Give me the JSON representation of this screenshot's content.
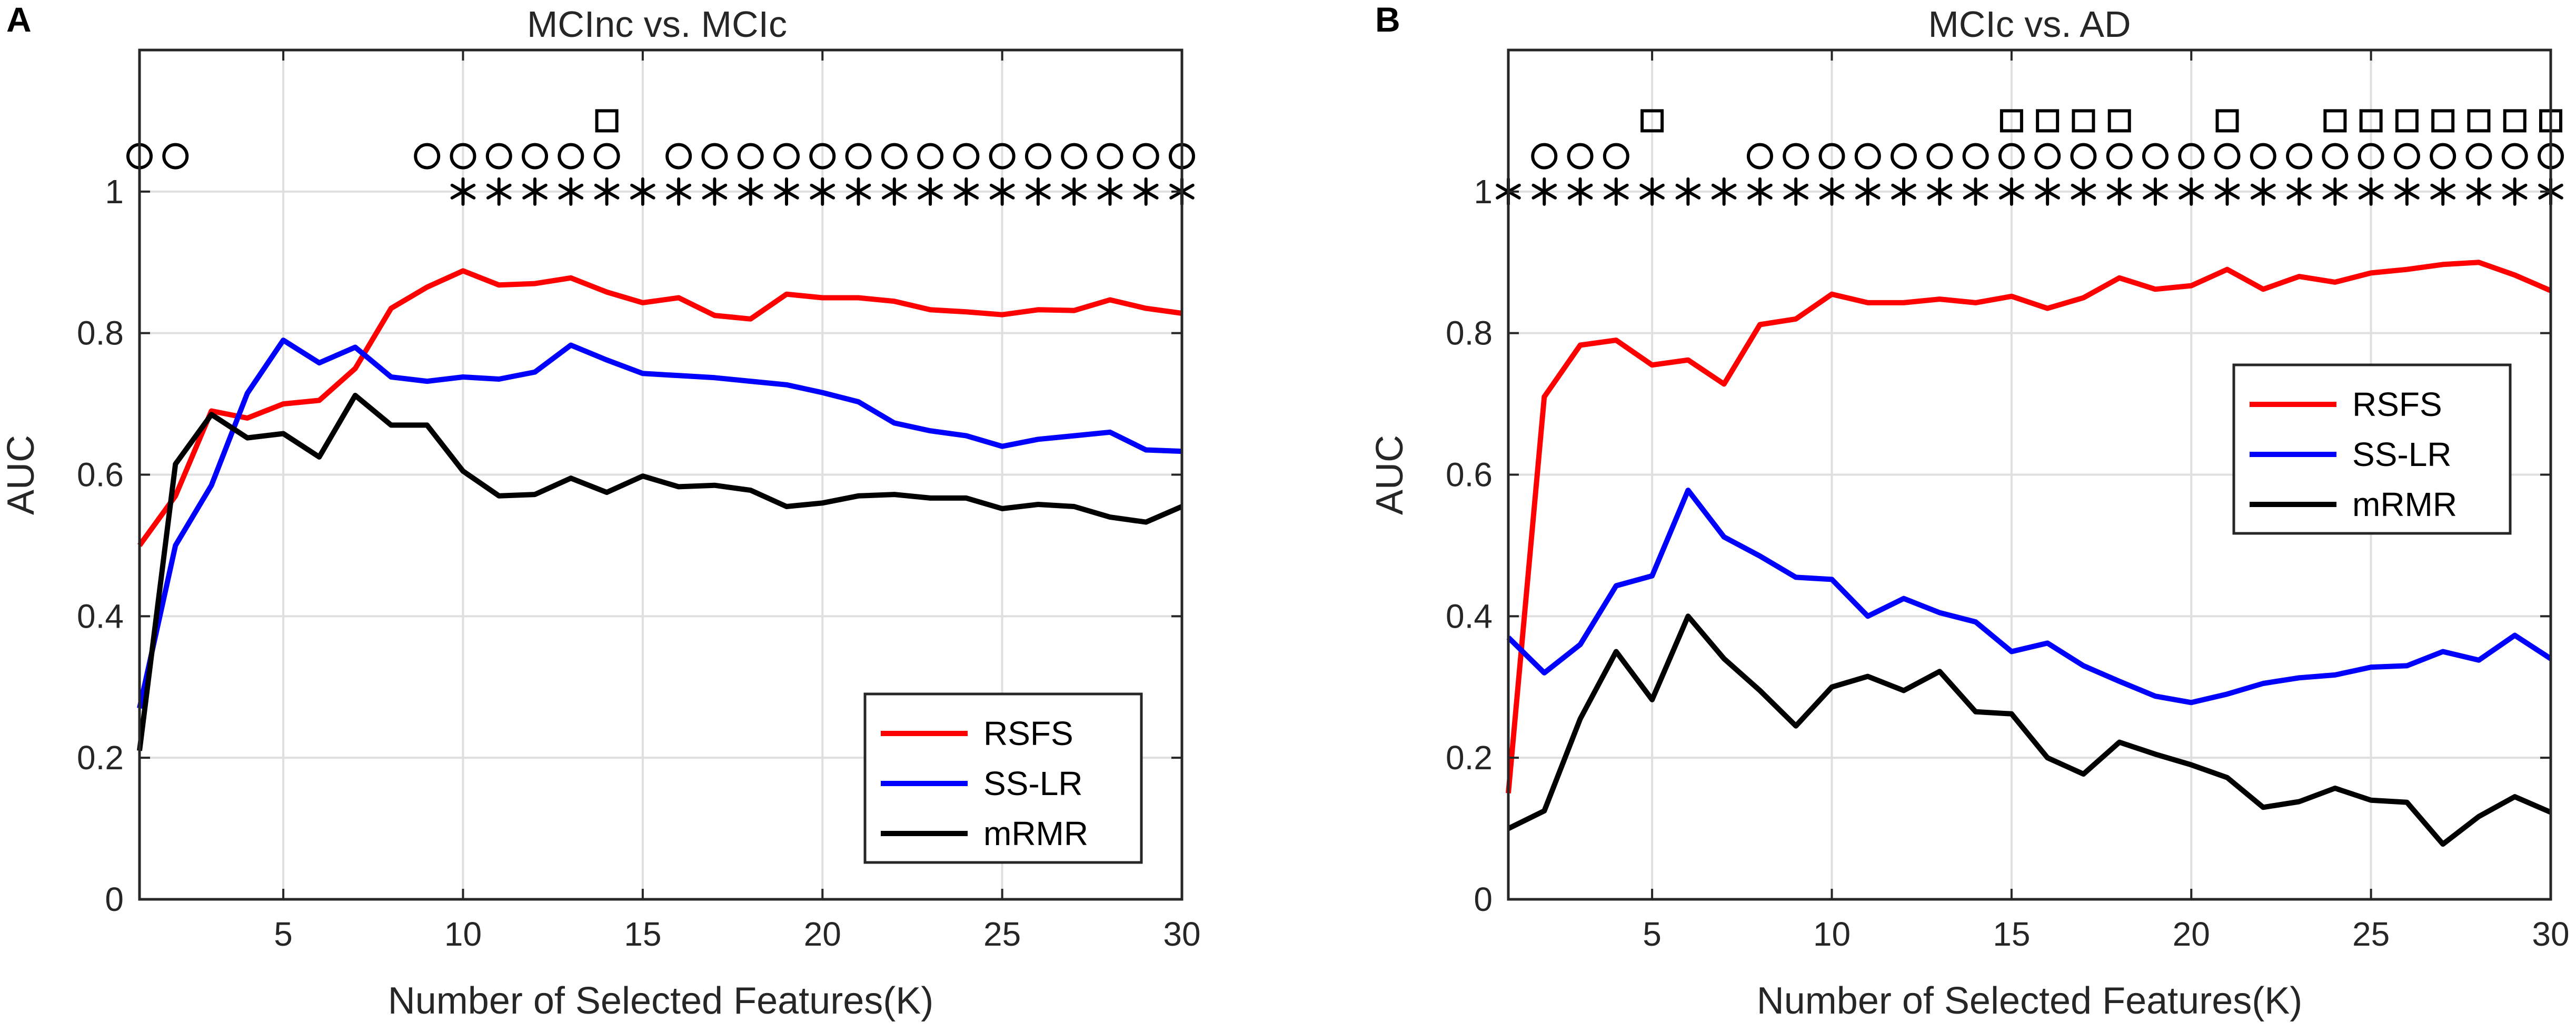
{
  "chart_data": [
    {
      "panel": "A",
      "type": "line",
      "title": "MCInc vs. MCIc",
      "xlabel": "Number of Selected Features(K)",
      "ylabel": "AUC",
      "xlim": [
        1,
        30
      ],
      "ylim": [
        0,
        1.2
      ],
      "xticks": [
        5,
        10,
        15,
        20,
        25,
        30
      ],
      "yticks": [
        0,
        0.2,
        0.4,
        0.6,
        0.8,
        1
      ],
      "x": [
        1,
        2,
        3,
        4,
        5,
        6,
        7,
        8,
        9,
        10,
        11,
        12,
        13,
        14,
        15,
        16,
        17,
        18,
        19,
        20,
        21,
        22,
        23,
        24,
        25,
        26,
        27,
        28,
        29,
        30
      ],
      "series": [
        {
          "name": "RSFS",
          "color": "#ff0000",
          "values": [
            0.5,
            0.57,
            0.69,
            0.68,
            0.7,
            0.705,
            0.75,
            0.835,
            0.865,
            0.888,
            0.868,
            0.87,
            0.878,
            0.858,
            0.843,
            0.85,
            0.825,
            0.82,
            0.855,
            0.85,
            0.85,
            0.845,
            0.833,
            0.83,
            0.826,
            0.833,
            0.832,
            0.847,
            0.835,
            0.828
          ]
        },
        {
          "name": "SS-LR",
          "color": "#0000ff",
          "values": [
            0.27,
            0.5,
            0.585,
            0.715,
            0.79,
            0.758,
            0.78,
            0.738,
            0.732,
            0.738,
            0.735,
            0.745,
            0.783,
            0.762,
            0.743,
            0.74,
            0.737,
            0.732,
            0.727,
            0.716,
            0.703,
            0.673,
            0.662,
            0.655,
            0.64,
            0.65,
            0.655,
            0.66,
            0.635,
            0.633
          ]
        },
        {
          "name": "mRMR",
          "color": "#000000",
          "values": [
            0.21,
            0.615,
            0.685,
            0.652,
            0.658,
            0.625,
            0.712,
            0.67,
            0.67,
            0.605,
            0.57,
            0.572,
            0.595,
            0.575,
            0.598,
            0.583,
            0.585,
            0.578,
            0.555,
            0.56,
            0.57,
            0.572,
            0.567,
            0.567,
            0.552,
            0.558,
            0.555,
            0.54,
            0.533,
            0.555
          ]
        }
      ],
      "significance": {
        "circle": {
          "y": 1.05,
          "x": [
            1,
            2,
            9,
            10,
            11,
            12,
            13,
            14,
            16,
            17,
            18,
            19,
            20,
            21,
            22,
            23,
            24,
            25,
            26,
            27,
            28,
            29,
            30
          ]
        },
        "square": {
          "y": 1.1,
          "x": [
            14
          ]
        },
        "star": {
          "y": 1.0,
          "x": [
            10,
            11,
            12,
            13,
            14,
            15,
            16,
            17,
            18,
            19,
            20,
            21,
            22,
            23,
            24,
            25,
            26,
            27,
            28,
            29,
            30
          ]
        }
      },
      "legend": {
        "position": "bottom-right",
        "entries": [
          "RSFS",
          "SS-LR",
          "mRMR"
        ]
      }
    },
    {
      "panel": "B",
      "type": "line",
      "title": "MCIc vs. AD",
      "xlabel": "Number of Selected Features(K)",
      "ylabel": "AUC",
      "xlim": [
        1,
        30
      ],
      "ylim": [
        0,
        1.2
      ],
      "xticks": [
        5,
        10,
        15,
        20,
        25,
        30
      ],
      "yticks": [
        0,
        0.2,
        0.4,
        0.6,
        0.8,
        1
      ],
      "x": [
        1,
        2,
        3,
        4,
        5,
        6,
        7,
        8,
        9,
        10,
        11,
        12,
        13,
        14,
        15,
        16,
        17,
        18,
        19,
        20,
        21,
        22,
        23,
        24,
        25,
        26,
        27,
        28,
        29,
        30
      ],
      "series": [
        {
          "name": "RSFS",
          "color": "#ff0000",
          "values": [
            0.15,
            0.71,
            0.783,
            0.79,
            0.755,
            0.762,
            0.728,
            0.812,
            0.82,
            0.855,
            0.843,
            0.843,
            0.848,
            0.843,
            0.852,
            0.835,
            0.85,
            0.878,
            0.862,
            0.867,
            0.89,
            0.862,
            0.88,
            0.872,
            0.885,
            0.89,
            0.897,
            0.9,
            0.882,
            0.86
          ]
        },
        {
          "name": "SS-LR",
          "color": "#0000ff",
          "values": [
            0.37,
            0.32,
            0.36,
            0.443,
            0.457,
            0.578,
            0.512,
            0.485,
            0.455,
            0.452,
            0.4,
            0.425,
            0.405,
            0.392,
            0.35,
            0.362,
            0.33,
            0.308,
            0.287,
            0.278,
            0.29,
            0.305,
            0.313,
            0.317,
            0.328,
            0.33,
            0.35,
            0.338,
            0.373,
            0.34
          ]
        },
        {
          "name": "mRMR",
          "color": "#000000",
          "values": [
            0.1,
            0.125,
            0.255,
            0.35,
            0.282,
            0.4,
            0.34,
            0.295,
            0.245,
            0.3,
            0.315,
            0.295,
            0.322,
            0.265,
            0.262,
            0.2,
            0.177,
            0.222,
            0.205,
            0.19,
            0.172,
            0.13,
            0.138,
            0.157,
            0.14,
            0.137,
            0.078,
            0.117,
            0.145,
            0.123
          ]
        }
      ],
      "significance": {
        "circle": {
          "y": 1.05,
          "x": [
            2,
            3,
            4,
            8,
            9,
            10,
            11,
            12,
            13,
            14,
            15,
            16,
            17,
            18,
            19,
            20,
            21,
            22,
            23,
            24,
            25,
            26,
            27,
            28,
            29,
            30
          ]
        },
        "square": {
          "y": 1.1,
          "x": [
            5,
            15,
            16,
            17,
            18,
            21,
            24,
            25,
            26,
            27,
            28,
            29,
            30
          ]
        },
        "star": {
          "y": 1.0,
          "x": [
            1,
            2,
            3,
            4,
            5,
            6,
            7,
            8,
            9,
            10,
            11,
            12,
            13,
            14,
            15,
            16,
            17,
            18,
            19,
            20,
            21,
            22,
            23,
            24,
            25,
            26,
            27,
            28,
            29,
            30
          ]
        }
      },
      "legend": {
        "position": "center-right",
        "entries": [
          "RSFS",
          "SS-LR",
          "mRMR"
        ]
      }
    }
  ]
}
